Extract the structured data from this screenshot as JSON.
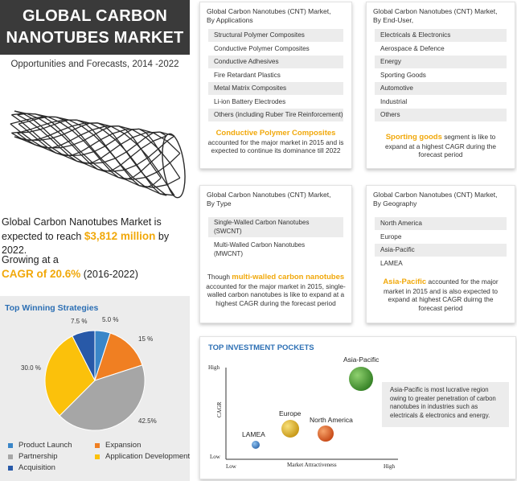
{
  "title": {
    "line1": "GLOBAL CARBON",
    "line2": "NANOTUBES MARKET",
    "subtitle": "Opportunities and Forecasts, 2014 -2022"
  },
  "stats": {
    "market_text_a": "Global Carbon Nanotubes Market is",
    "market_text_b": "expected to reach ",
    "market_value": "$3,812 million",
    "market_text_c": " by 2022.",
    "growth_text": "Growing at a",
    "cagr": "CAGR of 20.6%",
    "cagr_period": " (2016-2022)"
  },
  "strategies": {
    "title": "Top Winning Strategies",
    "legend": [
      {
        "label": "Product Launch",
        "color": "#3a86c8"
      },
      {
        "label": "Expansion",
        "color": "#f07f22"
      },
      {
        "label": "Partnership",
        "color": "#a6a6a6"
      },
      {
        "label": "Application Development",
        "color": "#fbc10b"
      },
      {
        "label": "Acquisition",
        "color": "#2859a8"
      }
    ]
  },
  "chart_data": {
    "type": "pie",
    "title": "Top Winning Strategies",
    "slices": [
      {
        "label": "Product Launch",
        "value": 5.0,
        "display": "5.0 %",
        "color": "#3a86c8"
      },
      {
        "label": "Expansion",
        "value": 15,
        "display": "15 %",
        "color": "#f07f22"
      },
      {
        "label": "Partnership",
        "value": 42.5,
        "display": "42.5%",
        "color": "#a6a6a6"
      },
      {
        "label": "Application Development",
        "value": 30.0,
        "display": "30.0 %",
        "color": "#fbc10b"
      },
      {
        "label": "Acquisition",
        "value": 7.5,
        "display": "7.5 %",
        "color": "#2859a8"
      }
    ]
  },
  "applications": {
    "header1": "Global Carbon Nanotubes (CNT) Market,",
    "header2": "By Applications",
    "items": [
      "Structural Polymer Composites",
      "Conductive Polymer Composites",
      "Conductive Adhesives",
      "Fire Retardant Plastics",
      "Metal Matrix Composites",
      "Li-ion Battery Electrodes",
      "Others (including Ruber Tire Reinforcement)"
    ],
    "note_highlight": "Conductive Polymer Composites",
    "note_text": "accounted for the major market in 2015 and is expected to continue its dominance till 2022"
  },
  "end_user": {
    "header1": "Global Carbon Nanotubes (CNT) Market,",
    "header2": "By End-User,",
    "items": [
      "Electricals & Electronics",
      "Aerospace & Defence",
      "Energy",
      "Sporting Goods",
      "Automotive",
      "Industrial",
      "Others"
    ],
    "note_highlight": "Sporting goods",
    "note_text": " segment is like to expand at a highest CAGR during the forecast period"
  },
  "type": {
    "header1": "Global Carbon Nanotubes (CNT) Market,",
    "header2": "By Type",
    "item1_a": "Single-Walled Carbon Nanotubes",
    "item1_b": "(SWCNT)",
    "item2_a": "Multi-Walled Carbon Nanotubes",
    "item2_b": "(MWCNT)",
    "note_prefix": "Though ",
    "note_highlight": "multi-walled carbon nanotubes",
    "note_text": "accounted for the major market in 2015, single-walled carbon nanotubes is like to expand at a highest CAGR during the forecast period"
  },
  "geography": {
    "header1": "Global Carbon Nanotubes (CNT) Market,",
    "header2": "By Geography",
    "items": [
      "North America",
      "Europe",
      "Asia-Pacific",
      "LAMEA"
    ],
    "note_highlight": "Asia-Pacific",
    "note_text": " accounted for the major market in 2015 and is also expected to expand at highest CAGR duirng the forecast period"
  },
  "investment": {
    "title": "TOP INVESTMENT POCKETS",
    "y_axis_label": "CAGR",
    "x_axis_label": "Market Attractiveness",
    "y_high": "High",
    "y_low": "Low",
    "x_low": "Low",
    "x_high": "High",
    "note": "Asia-Pacific is most lucrative region owing to greater penetration of carbon nanotubes in industries such as electricals & electronics and energy.",
    "bubbles": [
      {
        "label": "Asia-Pacific",
        "color": "#3c9a2e"
      },
      {
        "label": "Europe",
        "color": "#e0b01e"
      },
      {
        "label": "North America",
        "color": "#e0581a"
      },
      {
        "label": "LAMEA",
        "color": "#3a7fc9"
      }
    ]
  }
}
